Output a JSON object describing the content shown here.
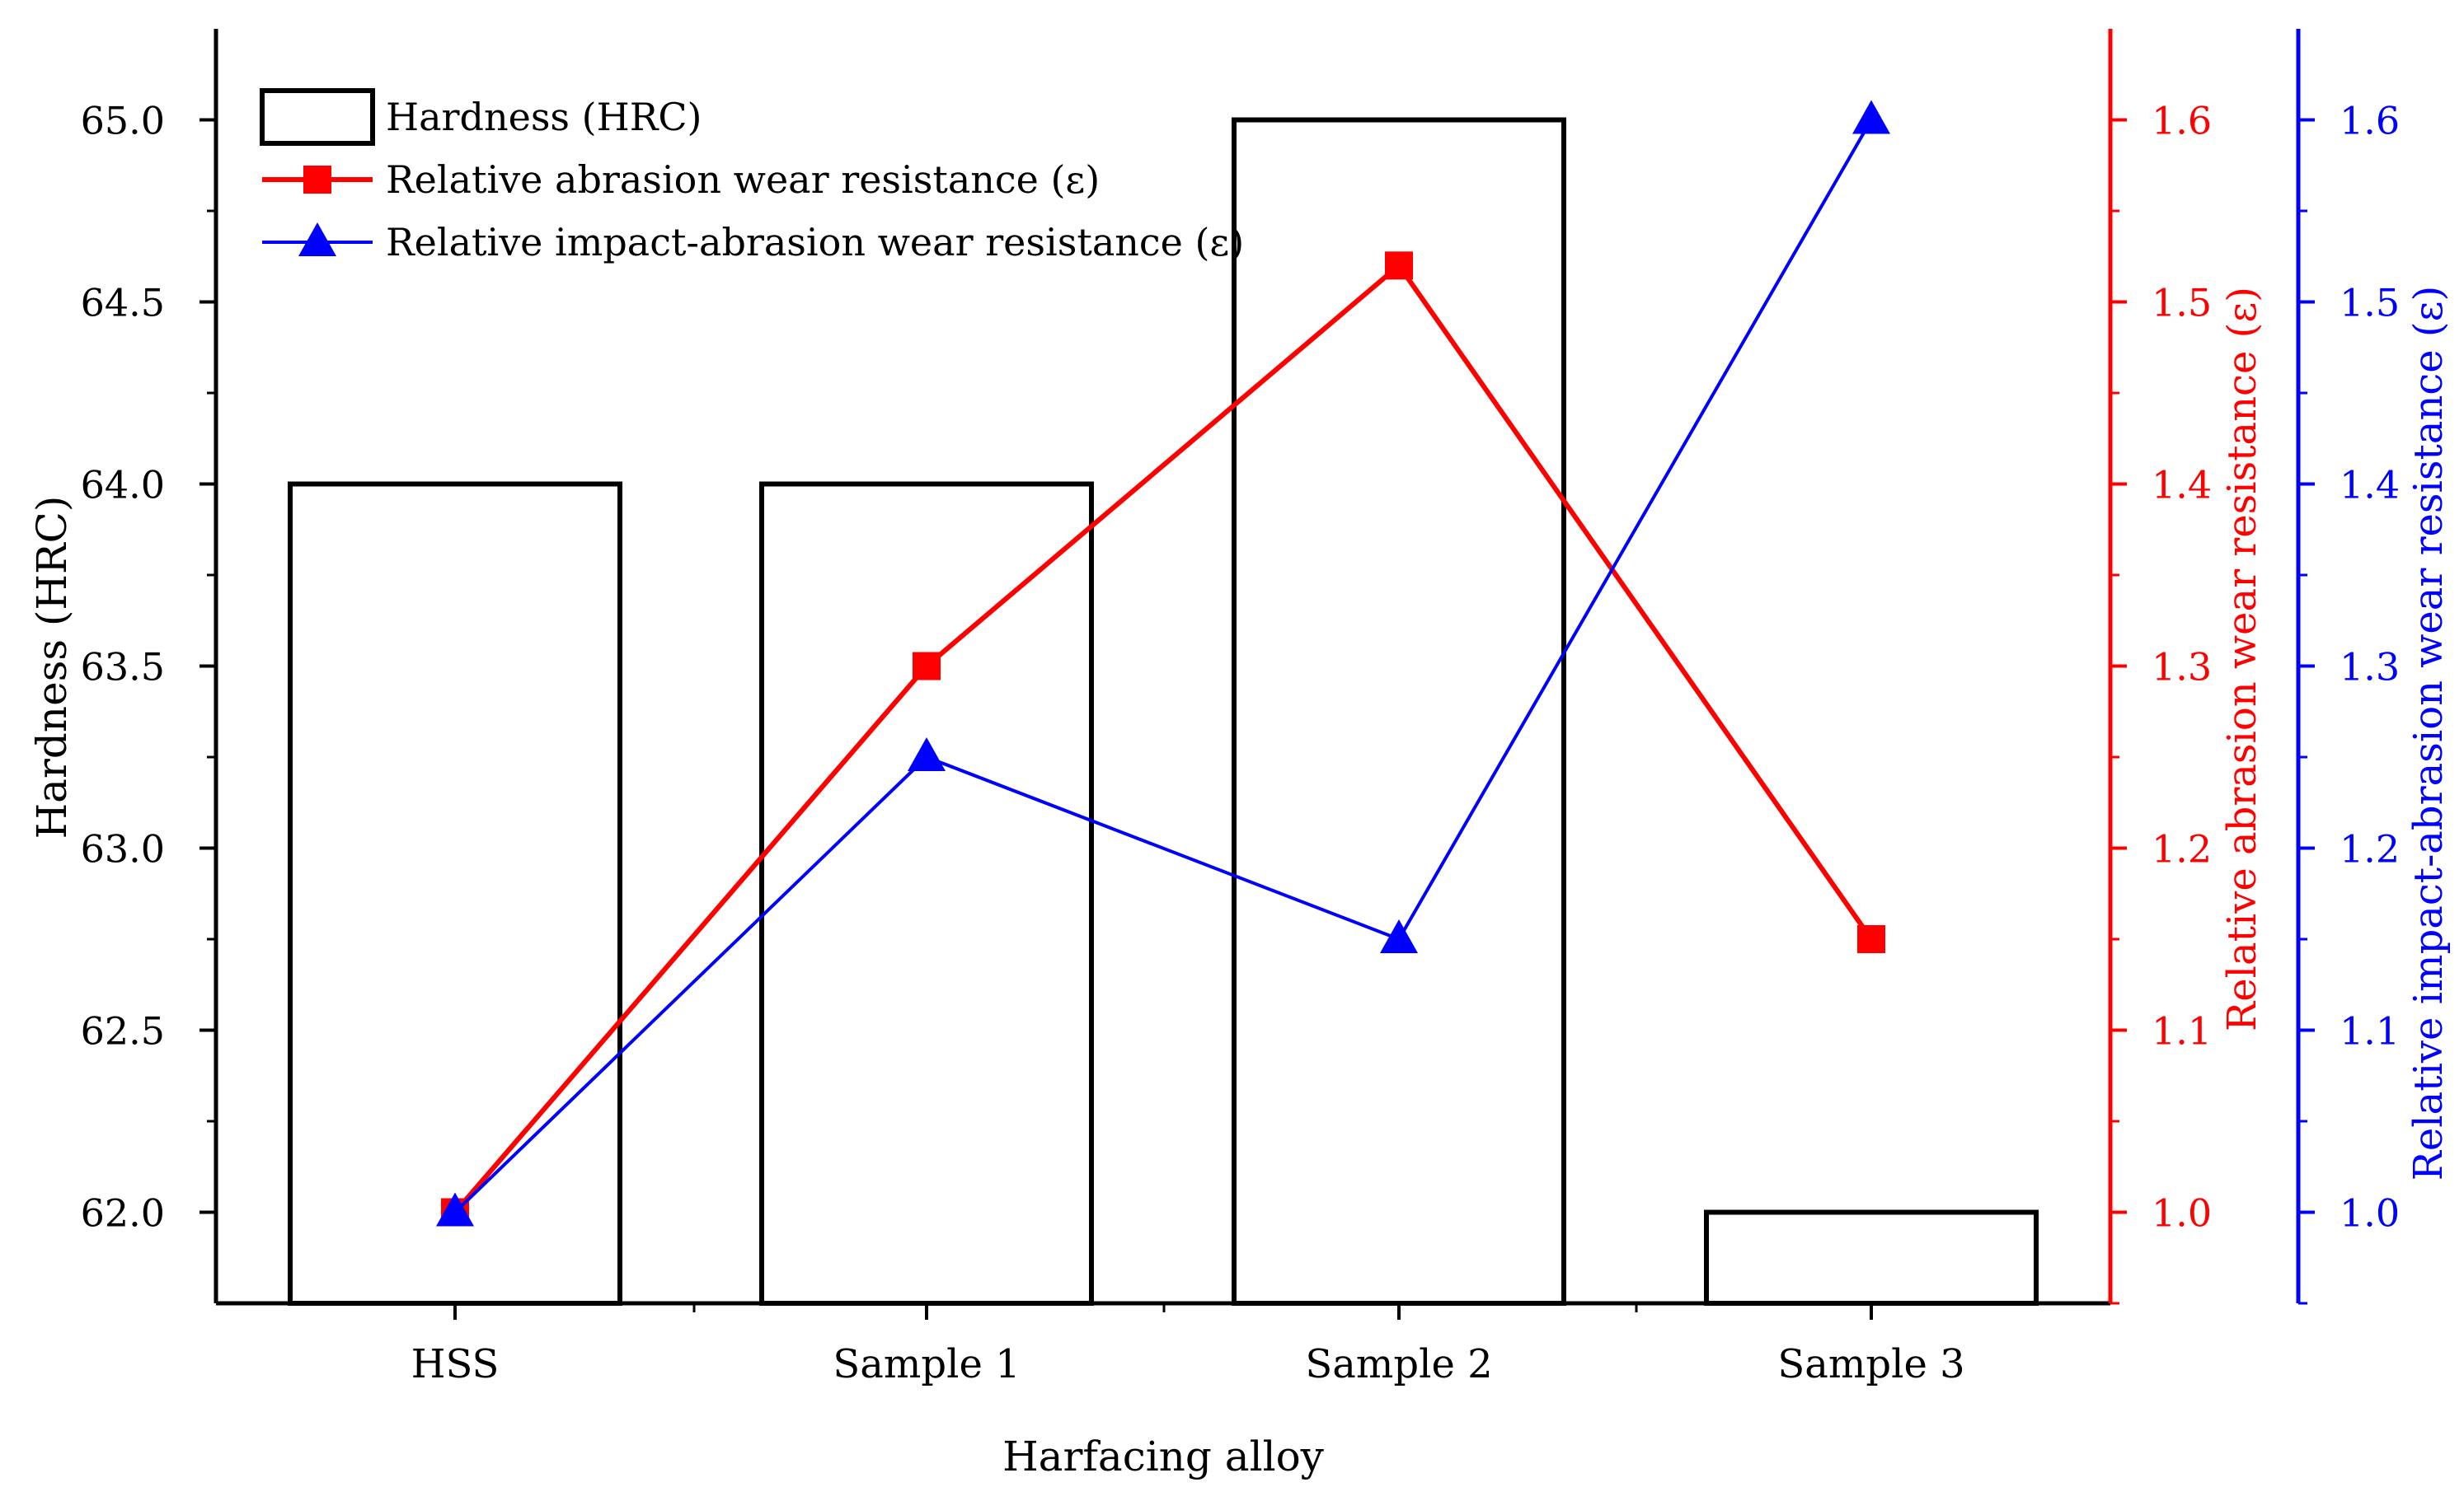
{
  "chart_data": {
    "type": "bar",
    "categories": [
      "HSS",
      "Sample 1",
      "Sample 2",
      "Sample 3"
    ],
    "xlabel": "Harfacing alloy",
    "axes": {
      "left": {
        "label": "Hardness (HRC)",
        "ylim": [
          61.75,
          65.25
        ],
        "ticks": [
          "62.0",
          "62.5",
          "63.0",
          "63.5",
          "64.0",
          "64.5",
          "65.0"
        ],
        "tick_values": [
          62.0,
          62.5,
          63.0,
          63.5,
          64.0,
          64.5,
          65.0
        ],
        "color": "#000000"
      },
      "right_red": {
        "label": "Relative abrasion wear resistance (ε)",
        "ylim": [
          0.95,
          1.65
        ],
        "ticks": [
          "1.0",
          "1.1",
          "1.2",
          "1.3",
          "1.4",
          "1.5",
          "1.6"
        ],
        "tick_values": [
          1.0,
          1.1,
          1.2,
          1.3,
          1.4,
          1.5,
          1.6
        ],
        "color": "#ff0000"
      },
      "right_blue": {
        "label": "Relative impact-abrasion wear resistance (ε)",
        "ylim": [
          0.95,
          1.65
        ],
        "ticks": [
          "1.0",
          "1.1",
          "1.2",
          "1.3",
          "1.4",
          "1.5",
          "1.6"
        ],
        "tick_values": [
          1.0,
          1.1,
          1.2,
          1.3,
          1.4,
          1.5,
          1.6
        ],
        "color": "#0000ff"
      }
    },
    "series": [
      {
        "name": "Hardness (HRC)",
        "kind": "bar",
        "axis": "left",
        "values": [
          64.0,
          64.0,
          65.0,
          62.0
        ],
        "color": "#000000"
      },
      {
        "name": "Relative abrasion wear resistance (ε)",
        "kind": "line",
        "marker": "square",
        "axis": "right_red",
        "values": [
          1.0,
          1.3,
          1.52,
          1.15
        ],
        "color": "#ff0000"
      },
      {
        "name": "Relative impact-abrasion wear resistance (ε)",
        "kind": "line",
        "marker": "triangle",
        "axis": "right_blue",
        "values": [
          1.0,
          1.25,
          1.15,
          1.6
        ],
        "color": "#0000ff"
      }
    ],
    "legend": {
      "position": "top-left",
      "entries": [
        "Hardness (HRC)",
        "Relative abrasion wear resistance (ε)",
        "Relative impact-abrasion wear resistance (ε)"
      ]
    }
  }
}
